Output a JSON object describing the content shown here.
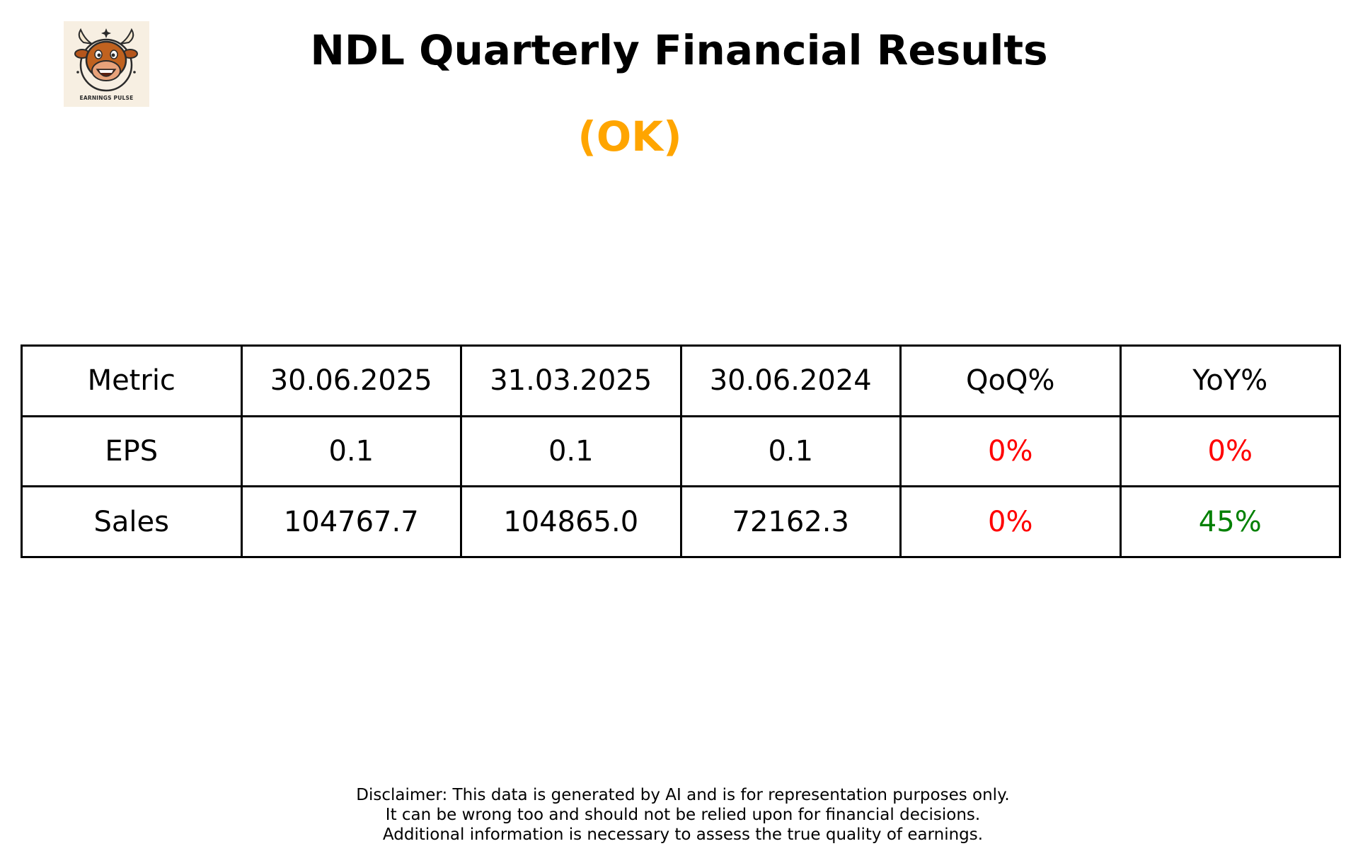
{
  "logo": {
    "text": "EARNINGS PULSE",
    "icon": "bull-mascot-icon",
    "background": "#f7efe2"
  },
  "header": {
    "title": "NDL Quarterly Financial Results",
    "status": "(OK)",
    "status_color": "#ffa500"
  },
  "chart_data": {
    "type": "table",
    "columns": [
      "Metric",
      "30.06.2025",
      "31.03.2025",
      "30.06.2024",
      "QoQ%",
      "YoY%"
    ],
    "rows": [
      {
        "metric": "EPS",
        "q1": "0.1",
        "q2": "0.1",
        "q3": "0.1",
        "qoq": "0%",
        "yoy": "0%"
      },
      {
        "metric": "Sales",
        "q1": "104767.7",
        "q2": "104865.0",
        "q3": "72162.3",
        "qoq": "0%",
        "yoy": "45%"
      }
    ],
    "colors": {
      "negative": "#ff0000",
      "positive": "#008000"
    }
  },
  "disclaimer": {
    "lines": [
      "Disclaimer: This data is generated by AI and is for representation purposes only.",
      "It can be wrong too and should not be relied upon for financial decisions.",
      "Additional information is necessary to assess the true quality of earnings."
    ]
  }
}
